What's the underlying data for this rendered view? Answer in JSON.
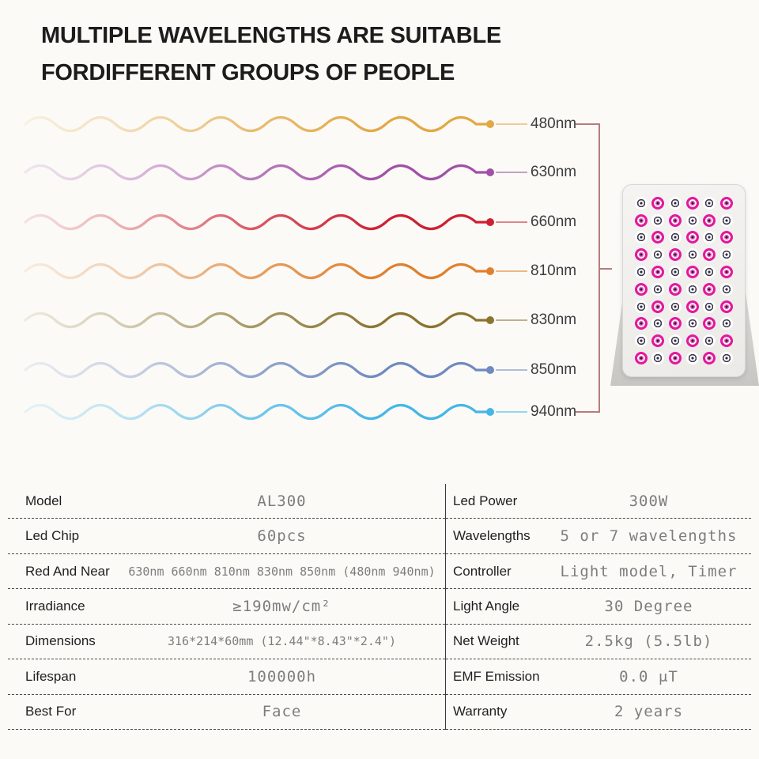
{
  "title": {
    "line1": "MULTIPLE WAVELENGTHS ARE SUITABLE",
    "line2": "FORDIFFERENT GROUPS OF PEOPLE"
  },
  "wavelengths": [
    {
      "label": "480nm",
      "color": "#e2a844"
    },
    {
      "label": "630nm",
      "color": "#a150a8"
    },
    {
      "label": "660nm",
      "color": "#cc2132"
    },
    {
      "label": "810nm",
      "color": "#e0802e"
    },
    {
      "label": "830nm",
      "color": "#8a7530"
    },
    {
      "label": "850nm",
      "color": "#6f8ac0"
    },
    {
      "label": "940nm",
      "color": "#45b6e8"
    }
  ],
  "bracket_color": "#b87b7b",
  "device": {
    "led_rows": 10,
    "led_cols": 6,
    "led_pink": "#e3189f",
    "led_dark": "#3f3850"
  },
  "spec_table": {
    "left": [
      {
        "label": "Model",
        "value": "AL300"
      },
      {
        "label": "Led Chip",
        "value": "60pcs"
      },
      {
        "label": "Red And Near",
        "value": "630nm 660nm 810nm 830nm 850nm (480nm 940nm)"
      },
      {
        "label": "Irradiance",
        "value": "≥190mw/cm²"
      },
      {
        "label": "Dimensions",
        "value": "316*214*60mm (12.44\"*8.43\"*2.4\")"
      },
      {
        "label": "Lifespan",
        "value": "100000h"
      },
      {
        "label": "Best For",
        "value": "Face"
      }
    ],
    "right": [
      {
        "label": "Led Power",
        "value": "300W"
      },
      {
        "label": "Wavelengths",
        "value": "5 or 7 wavelengths"
      },
      {
        "label": "Controller",
        "value": "Light model, Timer"
      },
      {
        "label": "Light Angle",
        "value": "30 Degree"
      },
      {
        "label": "Net Weight",
        "value": "2.5kg (5.5lb)"
      },
      {
        "label": "EMF Emission",
        "value": "0.0 μT"
      },
      {
        "label": "Warranty",
        "value": "2 years"
      }
    ]
  }
}
